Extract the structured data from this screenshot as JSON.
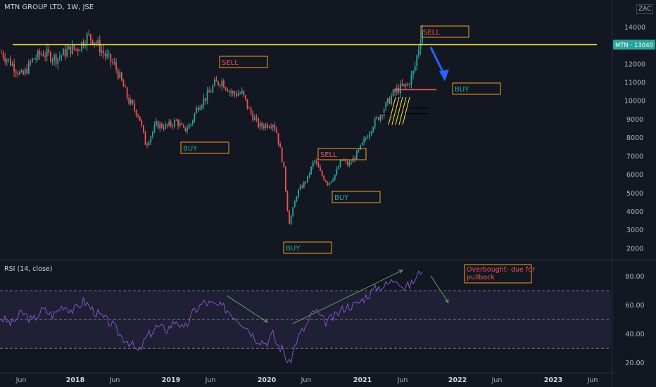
{
  "header": {
    "title": "MTN GROUP LTD, 1W, JSE",
    "currency_badge": "ZAC"
  },
  "price_badge": {
    "label": "MTN · 13040"
  },
  "rsi_label": "RSI (14, close)",
  "colors": {
    "bull": "#26a69a",
    "bear": "#ef5350",
    "resistance": "#f5e13b",
    "rsi": "#7e57c2",
    "arrow": "#2962ff"
  },
  "chart_data": {
    "type": "candlestick",
    "price_axis": {
      "ticks": [
        "14000",
        "13000",
        "12000",
        "11000",
        "10000",
        "9000",
        "8000",
        "7000",
        "6000",
        "5000",
        "4000",
        "3000",
        "2000"
      ],
      "ylim": [
        1500,
        14700
      ]
    },
    "rsi_axis": {
      "ticks": [
        "80.00",
        "60.00",
        "40.00",
        "20.00"
      ],
      "ylim": [
        15,
        90
      ],
      "overbought": 70,
      "middle": 50,
      "oversold": 30
    },
    "time_axis": [
      "Jun",
      "2018",
      "Jun",
      "2019",
      "Jun",
      "2020",
      "Jun",
      "2021",
      "Jun",
      "2022",
      "Jun",
      "2023",
      "Jun"
    ],
    "resistance_level": 13040,
    "close_path": [
      {
        "t": 0.0,
        "p": 12600
      },
      {
        "t": 0.1,
        "p": 12200
      },
      {
        "t": 0.2,
        "p": 11800
      },
      {
        "t": 0.3,
        "p": 11300
      },
      {
        "t": 0.45,
        "p": 12200
      },
      {
        "t": 0.6,
        "p": 12600
      },
      {
        "t": 0.8,
        "p": 12300
      },
      {
        "t": 1.0,
        "p": 12800
      },
      {
        "t": 1.1,
        "p": 12800
      },
      {
        "t": 1.25,
        "p": 13500
      },
      {
        "t": 1.35,
        "p": 13300
      },
      {
        "t": 1.5,
        "p": 12500
      },
      {
        "t": 1.65,
        "p": 11900
      },
      {
        "t": 1.75,
        "p": 11000
      },
      {
        "t": 1.85,
        "p": 10000
      },
      {
        "t": 2.0,
        "p": 9200
      },
      {
        "t": 2.1,
        "p": 7600
      },
      {
        "t": 2.25,
        "p": 8700
      },
      {
        "t": 2.4,
        "p": 8600
      },
      {
        "t": 2.55,
        "p": 8900
      },
      {
        "t": 2.65,
        "p": 8400
      },
      {
        "t": 2.75,
        "p": 8700
      },
      {
        "t": 2.85,
        "p": 9700
      },
      {
        "t": 3.0,
        "p": 10300
      },
      {
        "t": 3.1,
        "p": 10900
      },
      {
        "t": 3.2,
        "p": 11100
      },
      {
        "t": 3.35,
        "p": 10400
      },
      {
        "t": 3.5,
        "p": 10400
      },
      {
        "t": 3.6,
        "p": 9500
      },
      {
        "t": 3.75,
        "p": 8600
      },
      {
        "t": 3.85,
        "p": 8700
      },
      {
        "t": 3.95,
        "p": 8800
      },
      {
        "t": 4.0,
        "p": 8300
      },
      {
        "t": 4.1,
        "p": 6500
      },
      {
        "t": 4.18,
        "p": 3300
      },
      {
        "t": 4.3,
        "p": 5000
      },
      {
        "t": 4.45,
        "p": 5800
      },
      {
        "t": 4.55,
        "p": 6800
      },
      {
        "t": 4.65,
        "p": 6000
      },
      {
        "t": 4.75,
        "p": 5500
      },
      {
        "t": 4.85,
        "p": 6000
      },
      {
        "t": 4.95,
        "p": 6800
      },
      {
        "t": 5.05,
        "p": 6500
      },
      {
        "t": 5.2,
        "p": 7300
      },
      {
        "t": 5.3,
        "p": 8000
      },
      {
        "t": 5.4,
        "p": 8700
      },
      {
        "t": 5.5,
        "p": 9200
      },
      {
        "t": 5.6,
        "p": 9800
      },
      {
        "t": 5.7,
        "p": 10400
      },
      {
        "t": 5.8,
        "p": 10700
      },
      {
        "t": 5.9,
        "p": 10800
      },
      {
        "t": 6.0,
        "p": 11600
      },
      {
        "t": 6.05,
        "p": 12600
      },
      {
        "t": 6.12,
        "p": 13900
      }
    ],
    "rsi_path": [
      {
        "t": 0.0,
        "v": 51
      },
      {
        "t": 0.15,
        "v": 47
      },
      {
        "t": 0.3,
        "v": 55
      },
      {
        "t": 0.45,
        "v": 49
      },
      {
        "t": 0.6,
        "v": 57
      },
      {
        "t": 0.75,
        "v": 53
      },
      {
        "t": 0.9,
        "v": 60
      },
      {
        "t": 1.05,
        "v": 56
      },
      {
        "t": 1.2,
        "v": 63
      },
      {
        "t": 1.3,
        "v": 58
      },
      {
        "t": 1.45,
        "v": 52
      },
      {
        "t": 1.6,
        "v": 47
      },
      {
        "t": 1.75,
        "v": 38
      },
      {
        "t": 1.85,
        "v": 35
      },
      {
        "t": 2.0,
        "v": 27
      },
      {
        "t": 2.1,
        "v": 37
      },
      {
        "t": 2.25,
        "v": 45
      },
      {
        "t": 2.4,
        "v": 43
      },
      {
        "t": 2.55,
        "v": 50
      },
      {
        "t": 2.65,
        "v": 42
      },
      {
        "t": 2.8,
        "v": 56
      },
      {
        "t": 2.95,
        "v": 62
      },
      {
        "t": 3.1,
        "v": 60
      },
      {
        "t": 3.25,
        "v": 58
      },
      {
        "t": 3.4,
        "v": 52
      },
      {
        "t": 3.55,
        "v": 46
      },
      {
        "t": 3.7,
        "v": 37
      },
      {
        "t": 3.85,
        "v": 34
      },
      {
        "t": 3.95,
        "v": 40
      },
      {
        "t": 4.0,
        "v": 33
      },
      {
        "t": 4.1,
        "v": 29
      },
      {
        "t": 4.18,
        "v": 18
      },
      {
        "t": 4.3,
        "v": 37
      },
      {
        "t": 4.45,
        "v": 47
      },
      {
        "t": 4.55,
        "v": 57
      },
      {
        "t": 4.7,
        "v": 48
      },
      {
        "t": 4.85,
        "v": 52
      },
      {
        "t": 5.0,
        "v": 59
      },
      {
        "t": 5.15,
        "v": 60
      },
      {
        "t": 5.3,
        "v": 66
      },
      {
        "t": 5.45,
        "v": 72
      },
      {
        "t": 5.6,
        "v": 74
      },
      {
        "t": 5.75,
        "v": 79
      },
      {
        "t": 5.85,
        "v": 72
      },
      {
        "t": 5.95,
        "v": 74
      },
      {
        "t": 6.05,
        "v": 80
      },
      {
        "t": 6.12,
        "v": 86
      }
    ],
    "annotations": [
      {
        "text": "SELL",
        "t": 6.12,
        "p": 13900
      },
      {
        "text": "SELL",
        "t": 2.6,
        "p": 12100
      },
      {
        "text": "BUY",
        "t": 6.42,
        "p": 10600
      },
      {
        "text": "BUY",
        "t": 1.87,
        "p": 7600
      },
      {
        "text": "SELL",
        "t": 5.05,
        "p": 7100
      },
      {
        "text": "BUY",
        "t": 5.0,
        "p": 4800
      },
      {
        "text": "BUY",
        "t": 4.18,
        "p": 2000
      }
    ],
    "rsi_note": {
      "lines": [
        "Overbought- due for",
        "pullback"
      ]
    }
  }
}
